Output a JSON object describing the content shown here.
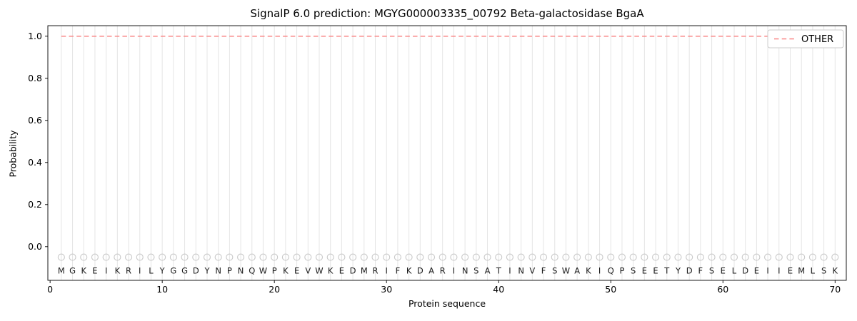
{
  "chart_data": {
    "type": "line",
    "title": "SignalP 6.0 prediction: MGYG000003335_00792 Beta-galactosidase BgaA",
    "xlabel": "Protein sequence",
    "ylabel": "Probability",
    "xlim": [
      -0.2,
      71
    ],
    "ylim": [
      -0.16,
      1.05
    ],
    "xticks": [
      0,
      10,
      20,
      30,
      40,
      50,
      60,
      70
    ],
    "yticks": [
      0.0,
      0.2,
      0.4,
      0.6,
      0.8,
      1.0
    ],
    "grid": "vertical gridline at every residue position",
    "grid_color": "#e5e5e5",
    "sequence": "MGKEIKRILYGGDYNPNQWPKEVWKEDMRIFKDARINSATINVFSWAKIQPSEETYDFSELDEIIEMLSK",
    "series": [
      {
        "name": "OTHER",
        "color": "#f98585",
        "linestyle": "dashed",
        "x_start": 1,
        "x_end": 70,
        "y_constant": 1.0
      }
    ],
    "residue_markers": {
      "shape": "open-circle",
      "y": -0.05,
      "color": "#c9c9c9"
    },
    "legend": {
      "position": "upper right",
      "entries": [
        {
          "label": "OTHER",
          "color": "#f98585",
          "linestyle": "dashed"
        }
      ]
    }
  }
}
